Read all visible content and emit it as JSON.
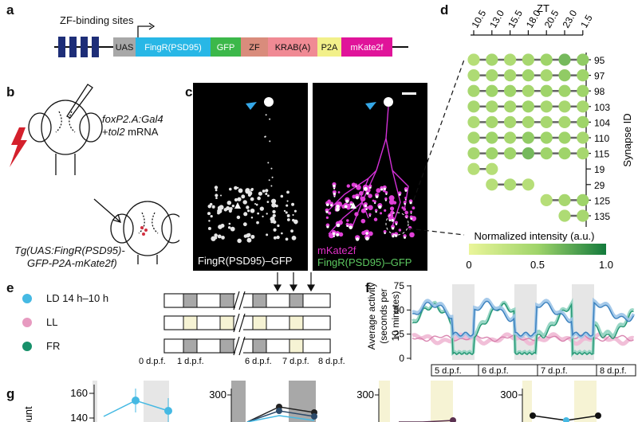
{
  "panels": {
    "a": "a",
    "b": "b",
    "c": "c",
    "d": "d",
    "e": "e",
    "f": "f",
    "g": "g"
  },
  "a": {
    "zf_sites_label": "ZF-binding sites",
    "segments": [
      {
        "label": "UAS",
        "color": "#a8a8a8"
      },
      {
        "label": "FingR(PSD95)",
        "color": "#28b7e6"
      },
      {
        "label": "GFP",
        "color": "#3cb84a"
      },
      {
        "label": "ZF",
        "color": "#d98c7c"
      },
      {
        "label": "KRAB(A)",
        "color": "#f08a94"
      },
      {
        "label": "P2A",
        "color": "#f2f08a"
      },
      {
        "label": "mKate2f",
        "color": "#e0149a"
      }
    ]
  },
  "b": {
    "injection_line1": "foxP2.A:Gal4",
    "injection_line2_italic": "tol2",
    "injection_line2_rest": " mRNA",
    "injection_plus": "+",
    "tg_line1": "Tg(UAS:FingR(PSD95)-",
    "tg_line2": "GFP-P2A-mKate2f)"
  },
  "c": {
    "left_label": "FingR(PSD95)–GFP",
    "right_label1": "mKate2f",
    "right_label2": "FingR(PSD95)–GFP"
  },
  "d": {
    "zt_title": "ZT",
    "zt_ticks": [
      "10.5",
      "13.0",
      "15.5",
      "18.0",
      "20.5",
      "23.0",
      "1.5"
    ],
    "axis_label": "Synapse ID",
    "synapse_ids": [
      "95",
      "97",
      "98",
      "103",
      "104",
      "110",
      "115",
      "19",
      "29",
      "125",
      "135"
    ],
    "colorbar_title": "Normalized intensity (a.u.)",
    "colorbar_ticks": [
      "0",
      "0.5",
      "1.0"
    ],
    "colors": {
      "low": "#eaf59a",
      "high": "#137a3c"
    }
  },
  "e": {
    "conditions": [
      {
        "label": "LD 14 h–10 h",
        "color": "#45b9e3"
      },
      {
        "label": "LL",
        "color": "#e79ac0"
      },
      {
        "label": "FR",
        "color": "#17906a"
      }
    ],
    "day_labels": [
      "0 d.p.f.",
      "1 d.p.f.",
      "6 d.p.f.",
      "7 d.p.f.",
      "8 d.p.f."
    ]
  },
  "f": {
    "ylabel1": "Average activity",
    "ylabel2": "(seconds per",
    "ylabel3": "10 minutes)",
    "yticks": [
      "0",
      "25",
      "50",
      "75"
    ],
    "day_labels": [
      "5 d.p.f.",
      "6 d.p.f.",
      "7 d.p.f.",
      "8 d.p.f."
    ]
  },
  "g": {
    "ylabel_partial": "ount",
    "plot1_ticks": [
      "160",
      "140"
    ],
    "plot2_tick": "300",
    "plot3_tick": "300",
    "plot4_tick": "300"
  },
  "chart_data": [
    {
      "type": "heatmap",
      "panel": "d",
      "title": "ZT",
      "x": [
        "10.5",
        "13.0",
        "15.5",
        "18.0",
        "20.5",
        "23.0",
        "1.5"
      ],
      "y": [
        "95",
        "97",
        "98",
        "103",
        "104",
        "110",
        "115",
        "19",
        "29",
        "125",
        "135"
      ],
      "ylabel": "Synapse ID",
      "colorbar_label": "Normalized intensity (a.u.)",
      "range": [
        0,
        1
      ],
      "values": [
        [
          0.35,
          0.45,
          0.4,
          0.45,
          0.5,
          0.65,
          0.55
        ],
        [
          0.4,
          0.45,
          0.45,
          0.5,
          0.45,
          0.55,
          0.5
        ],
        [
          0.45,
          0.5,
          0.5,
          0.45,
          0.5,
          0.5,
          0.5
        ],
        [
          0.45,
          0.45,
          0.45,
          0.5,
          0.45,
          0.45,
          0.45
        ],
        [
          0.4,
          0.45,
          0.45,
          0.45,
          0.45,
          0.45,
          0.5
        ],
        [
          0.45,
          0.5,
          0.45,
          0.55,
          0.5,
          0.5,
          0.45
        ],
        [
          0.45,
          0.5,
          0.5,
          0.65,
          0.5,
          0.5,
          0.45
        ],
        [
          0.35,
          0.35,
          null,
          null,
          null,
          null,
          null
        ],
        [
          null,
          0.35,
          0.4,
          0.35,
          null,
          null,
          null
        ],
        [
          null,
          null,
          null,
          null,
          0.35,
          0.45,
          0.5
        ],
        [
          null,
          null,
          null,
          null,
          null,
          0.4,
          0.45
        ]
      ]
    },
    {
      "type": "line",
      "panel": "f",
      "ylabel": "Average activity (seconds per 10 minutes)",
      "ylim": [
        0,
        75
      ],
      "x": [
        "5 d.p.f.",
        "6 d.p.f.",
        "7 d.p.f.",
        "8 d.p.f."
      ],
      "series": [
        {
          "name": "LD 14 h–10 h",
          "color": "#2e78b8"
        },
        {
          "name": "LL",
          "color": "#e79ac0"
        },
        {
          "name": "FR",
          "color": "#17906a"
        }
      ]
    }
  ]
}
